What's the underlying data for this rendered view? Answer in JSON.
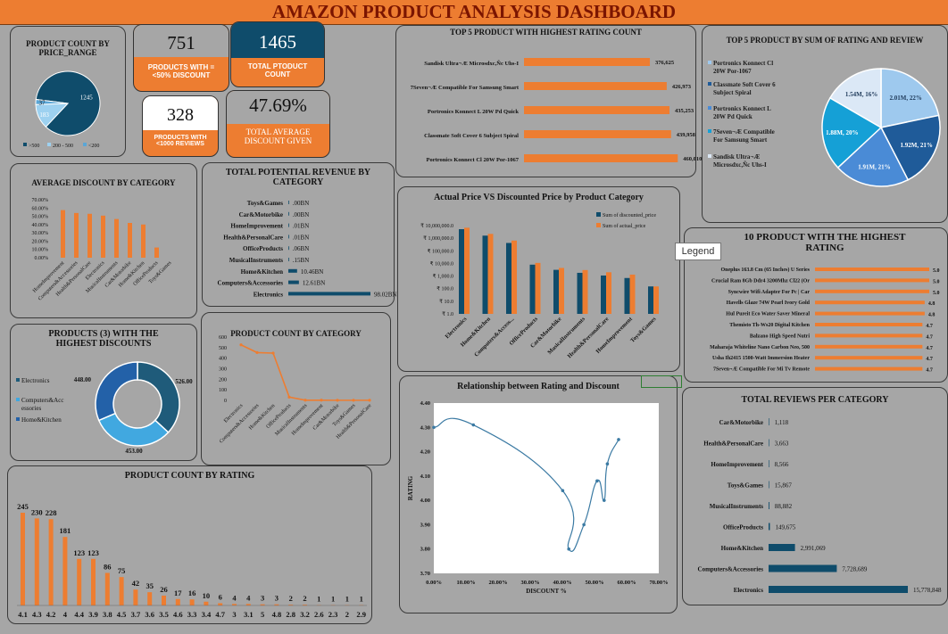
{
  "title": "AMAZON PRODUCT ANALYSIS DASHBOARD",
  "colors": {
    "orange": "#ed7d31",
    "navy": "#0f4c6b",
    "background": "#a6a6a6"
  },
  "kpis": {
    "discount_products": {
      "value": "751",
      "label": "PRODUCTS WITH =<50% DISCOUNT"
    },
    "total_products": {
      "value": "1465",
      "label": "TOTAL PTODUCT COUNT"
    },
    "low_reviews": {
      "value": "328",
      "label": "PRODUCTS WITH <1000 REVIEWS"
    },
    "avg_discount": {
      "value": "47.69%",
      "label": "TOTAL AVERAGE DISCOUNT GIVEN"
    }
  },
  "legend_tooltip": "Legend",
  "chart_data": [
    {
      "id": "price_range",
      "type": "pie",
      "title": "PRODUCT COUNT BY PRICE_RANGE",
      "labels": [
        ">500",
        "200 - 500",
        "<200"
      ],
      "values": [
        1245,
        183,
        37
      ],
      "colors": [
        "#0f4c6b",
        "#9dd1f0",
        "#5aa6d6"
      ]
    },
    {
      "id": "top5_rating_count",
      "type": "bar",
      "title": "TOP 5 PRODUCT WITH HIGHEST RATING COUNT",
      "categories": [
        "Sandisk Ultra¬Æ Microsdxc,Ñc Uhs-I",
        "7Seven¬Æ Compatible For Samsung Smart",
        "Portronics Konnect L 20W Pd Quick",
        "Classmate Soft Cover 6 Subject Spiral",
        "Portronics Konnect Cl 20W Por-1067"
      ],
      "values": [
        376625,
        426973,
        435253,
        439958,
        460010
      ],
      "value_labels": [
        "376,625",
        "426,973",
        "435,253",
        "439,958",
        "460,010"
      ]
    },
    {
      "id": "top5_sum",
      "type": "pie",
      "title": "TOP 5 PRODUCT BY SUM OF RATING AND REVIEW",
      "labels": [
        "Portronics Konnect Cl 20W Por-1067",
        "Classmate Soft Cover 6 Subject Spiral",
        "Portronics Konnect L 20W Pd Quick",
        "7Seven¬Æ Compatible For Samsung Smart",
        "Sandisk Ultra¬Æ Microsdxc,Ñc Uhs-I"
      ],
      "values": [
        2.01,
        1.92,
        1.91,
        1.88,
        1.54
      ],
      "slice_labels": [
        "2.01M, 22%",
        "1.92M, 21%",
        "1.91M, 21%",
        "1.88M, 20%",
        "1.54M, 16%"
      ],
      "colors": [
        "#9ec9ee",
        "#1f5b99",
        "#4a8bd6",
        "#15a0d6",
        "#dbe8f6"
      ]
    },
    {
      "id": "avg_discount",
      "type": "bar",
      "title": "AVERAGE DISCOUNT BY CATEGORY",
      "categories": [
        "HomeImprovement",
        "Computers&Accessories",
        "Health&PersonalCare",
        "Electronics",
        "MusicalInstruments",
        "Car&Motorbike",
        "Home&Kitchen",
        "OfficeProducts",
        "Toys&Games"
      ],
      "values": [
        57.5,
        54.0,
        53.0,
        50.8,
        46.7,
        42.0,
        40.1,
        12.3,
        0.0
      ],
      "yticks": [
        "70.00%",
        "60.00%",
        "50.00%",
        "40.00%",
        "30.00%",
        "20.00%",
        "10.00%",
        "0.00%"
      ],
      "ylim": [
        0,
        70
      ]
    },
    {
      "id": "potential_revenue",
      "type": "bar",
      "title": "TOTAL  POTENTIAL REVENUE BY CATEGORY",
      "categories": [
        "Toys&Games",
        "Car&Motorbike",
        "HomeImprovement",
        "Health&PersonalCare",
        "OfficeProducts",
        "MusicalInstruments",
        "Home&Kitchen",
        "Computers&Accessories",
        "Electronics"
      ],
      "values": [
        0.0,
        0.0,
        0.01,
        0.01,
        0.06,
        0.15,
        10.46,
        12.61,
        98.02
      ],
      "value_labels": [
        ".00BN",
        ".00BN",
        ".01BN",
        ".01BN",
        ".06BN",
        ".15BN",
        "10.46BN",
        "12.61BN",
        "98.02BN"
      ]
    },
    {
      "id": "actual_vs_discounted",
      "type": "bar",
      "title": "Actual Price VS Discounted Price by Product Category",
      "categories": [
        "Electronics",
        "Home&Kitchen",
        "Computers&Access...",
        "OfficeProducts",
        "Car&Motorbike",
        "MusicalInstruments",
        "Health&PersonalCare",
        "HomeImprovement",
        "Toys&Games"
      ],
      "series": [
        {
          "name": "Sum of discounted_price",
          "values": [
            5200000,
            1600000,
            420000,
            8000,
            3100,
            1800,
            1100,
            700,
            150
          ]
        },
        {
          "name": "Sum of actual_price",
          "values": [
            6800000,
            2200000,
            650000,
            11000,
            4400,
            3000,
            2000,
            1300,
            150
          ]
        }
      ],
      "yticks": [
        "₹ 10,000,000.0",
        "₹ 1,000,000.0",
        "₹ 100,000.0",
        "₹ 10,000.0",
        "₹ 1,000.0",
        "₹ 100.0",
        "₹ 10.0",
        "₹ 1.0"
      ],
      "scale": "log"
    },
    {
      "id": "top10_rating",
      "type": "bar",
      "title": "10 PRODUCT WITH THE HIGHEST RATING",
      "categories": [
        "Oneplus 163.8 Cm (65 Inches) U Series",
        "Crucial Ram 8Gb Ddr4 3200Mhz Cl22 (Or",
        "Syncwire Wifi Adapter For Pc | Car",
        "Havells Glaze 74W Pearl Ivory Gold",
        "Hul Pureit Eco Water Saver Mineral",
        "Themisto Th-Ws20 Digital Kitchen",
        "Balzano High Speed Nutri",
        "Maharaja Whiteline Nano Carbon Neo, 500",
        "Usha Ih2415 1500-Watt Immersion Heater",
        "7Seven¬Æ Compatible For Mi Tv Remote"
      ],
      "values": [
        5.0,
        5.0,
        5.0,
        4.8,
        4.8,
        4.7,
        4.7,
        4.7,
        4.7,
        4.7
      ],
      "value_labels": [
        "5.0",
        "5.0",
        "5.0",
        "4.8",
        "4.8",
        "4.7",
        "4.7",
        "4.7",
        "4.7",
        "4.7"
      ]
    },
    {
      "id": "top_discount_categories",
      "type": "pie",
      "title": "PRODUCTS (3) WITH THE HIGHEST DISCOUNTS",
      "labels": [
        "Electronics",
        "Computers&Accessories",
        "Home&Kitchen"
      ],
      "values": [
        526,
        453,
        448
      ],
      "value_labels": [
        "526.00",
        "453.00",
        "448.00"
      ],
      "colors": [
        "#1f5b7a",
        "#41a8e0",
        "#2361a8"
      ]
    },
    {
      "id": "count_by_category",
      "type": "line",
      "title": "PRODUCT COUNT BY CATEGORY",
      "categories": [
        "Electronics",
        "Computers&Accessories",
        "Home&Kitchen",
        "OfficeProducts",
        "MusicalInstruments",
        "HomeImprovement",
        "Car&Motorbike",
        "Toys&Games",
        "Health&PersonalCare"
      ],
      "values": [
        526,
        453,
        448,
        31,
        2,
        2,
        1,
        1,
        1
      ],
      "yticks": [
        "600",
        "500",
        "400",
        "300",
        "200",
        "100",
        "0"
      ],
      "ylim": [
        0,
        600
      ]
    },
    {
      "id": "rating_vs_discount",
      "type": "scatter",
      "title": "Relationship between Rating and Discount",
      "xlabel": "DISCOUNT %",
      "ylabel": "RATING",
      "points": [
        [
          0.0,
          4.3
        ],
        [
          12.3,
          4.31
        ],
        [
          40.1,
          4.04
        ],
        [
          42.0,
          3.8
        ],
        [
          46.7,
          3.9
        ],
        [
          50.8,
          4.08
        ],
        [
          53.0,
          4.0
        ],
        [
          54.0,
          4.15
        ],
        [
          57.5,
          4.25
        ]
      ],
      "xticks": [
        "0.00%",
        "10.00%",
        "20.00%",
        "30.00%",
        "40.00%",
        "50.00%",
        "60.00%",
        "70.00%"
      ],
      "yticks": [
        "4.40",
        "4.30",
        "4.20",
        "4.10",
        "4.00",
        "3.90",
        "3.80",
        "3.70"
      ],
      "xlim": [
        0,
        70
      ],
      "ylim": [
        3.7,
        4.4
      ]
    },
    {
      "id": "reviews_per_category",
      "type": "bar",
      "title": "TOTAL REVIEWS PER CATEGORY",
      "categories": [
        "Car&Motorbike",
        "Health&PersonalCare",
        "HomeImprovement",
        "Toys&Games",
        "MusicalInstruments",
        "OfficeProducts",
        "Home&Kitchen",
        "Computers&Accessories",
        "Electronics"
      ],
      "values": [
        1118,
        3663,
        8566,
        15867,
        88882,
        149675,
        2991069,
        7728689,
        15778848
      ],
      "value_labels": [
        "1,118",
        "3,663",
        "8,566",
        "15,867",
        "88,882",
        "149,675",
        "2,991,069",
        "7,728,689",
        "15,778,848"
      ]
    },
    {
      "id": "count_by_rating",
      "type": "bar",
      "title": "PRODUCT COUNT BY RATING",
      "categories": [
        "4.1",
        "4.3",
        "4.2",
        "4",
        "4.4",
        "3.9",
        "3.8",
        "4.5",
        "3.7",
        "3.6",
        "3.5",
        "4.6",
        "3.3",
        "3.4",
        "4.7",
        "3",
        "3.1",
        "5",
        "4.8",
        "2.8",
        "3.2",
        "2.6",
        "2.3",
        "2",
        "2.9"
      ],
      "values": [
        245,
        230,
        228,
        181,
        123,
        123,
        86,
        75,
        42,
        35,
        26,
        17,
        16,
        10,
        6,
        4,
        4,
        3,
        3,
        2,
        2,
        1,
        1,
        1,
        1
      ]
    }
  ]
}
